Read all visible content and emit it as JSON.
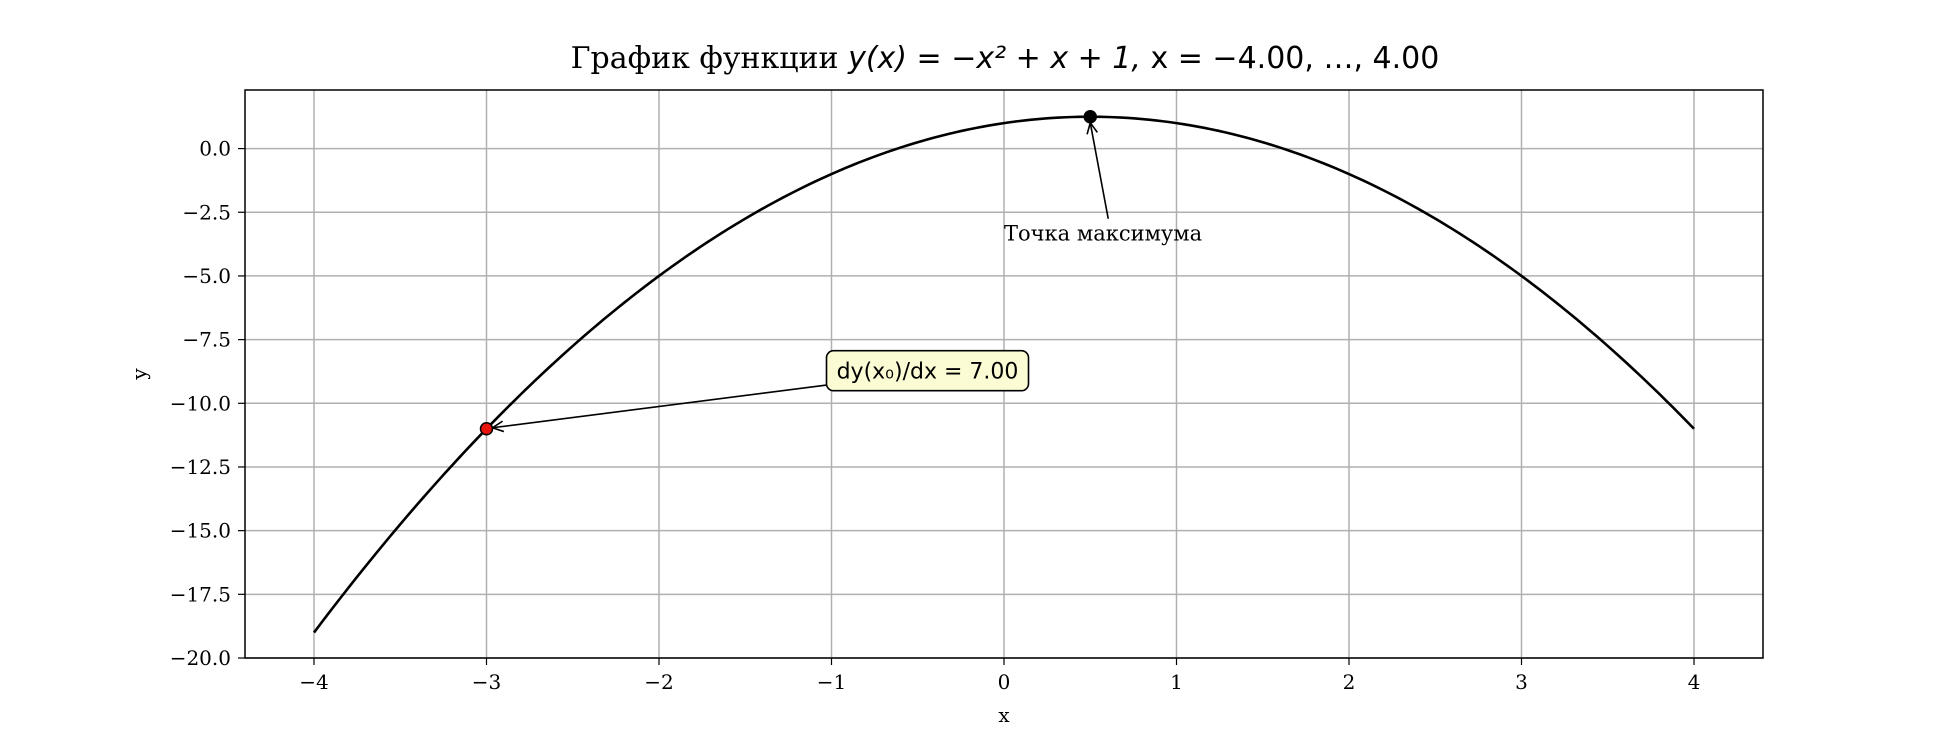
{
  "chart_data": {
    "type": "line",
    "title": {
      "prefix": "График функции ",
      "formula": "y(x) = −x² + x + 1, ",
      "range": "x = −4.00, …, 4.00"
    },
    "xlabel": "x",
    "ylabel": "y",
    "xlim": [
      -4.4,
      4.4
    ],
    "ylim": [
      -20.0,
      2.3
    ],
    "xticks": [
      -4,
      -3,
      -2,
      -1,
      0,
      1,
      2,
      3,
      4
    ],
    "xtick_labels": [
      "−4",
      "−3",
      "−2",
      "−1",
      "0",
      "1",
      "2",
      "3",
      "4"
    ],
    "yticks": [
      0.0,
      -2.5,
      -5.0,
      -7.5,
      -10.0,
      -12.5,
      -15.0,
      -17.5,
      -20.0
    ],
    "ytick_labels": [
      "0.0",
      "−2.5",
      "−5.0",
      "−7.5",
      "−10.0",
      "−12.5",
      "−15.0",
      "−17.5",
      "−20.0"
    ],
    "grid": true,
    "series": [
      {
        "function": "-x^2 + x + 1",
        "x_range": [
          -4.0,
          4.0
        ],
        "color": "#000000"
      }
    ],
    "points": [
      {
        "x": -3.0,
        "y": -11.0,
        "color": "#e8140c"
      },
      {
        "x": 0.5,
        "y": 1.25,
        "color": "#000000"
      }
    ],
    "annotations": [
      {
        "text": "Точка максимума",
        "x": 0.5,
        "y": 1.25,
        "text_x": 0.0,
        "text_y": -3.6
      },
      {
        "text": "dy(x₀)/dx = 7.00",
        "x": -3.0,
        "y": -11.0,
        "text_x": -1.0,
        "text_y": -8.8,
        "box_color": "#fbfbd4"
      }
    ]
  }
}
